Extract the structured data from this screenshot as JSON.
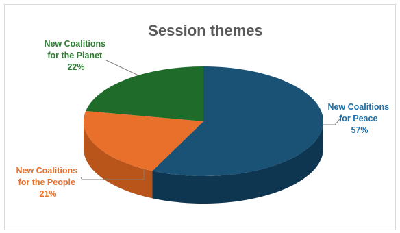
{
  "chart_data": {
    "type": "pie",
    "title": "Session themes",
    "slices": [
      {
        "label_line1": "New Coalitions",
        "label_line2": "for Peace",
        "percent_label": "57%",
        "value": 57,
        "color": "#1a5276",
        "side_color": "#0f3650",
        "label_color": "#1f6fa8"
      },
      {
        "label_line1": "New Coalitions",
        "label_line2": "for the People",
        "percent_label": "21%",
        "value": 21,
        "color": "#e8702a",
        "side_color": "#b9541a",
        "label_color": "#e8702a"
      },
      {
        "label_line1": "New Coalitions",
        "label_line2": "for the Planet",
        "percent_label": "22%",
        "value": 22,
        "color": "#1e6b2a",
        "side_color": "#134a1c",
        "label_color": "#2e7d32"
      }
    ]
  }
}
